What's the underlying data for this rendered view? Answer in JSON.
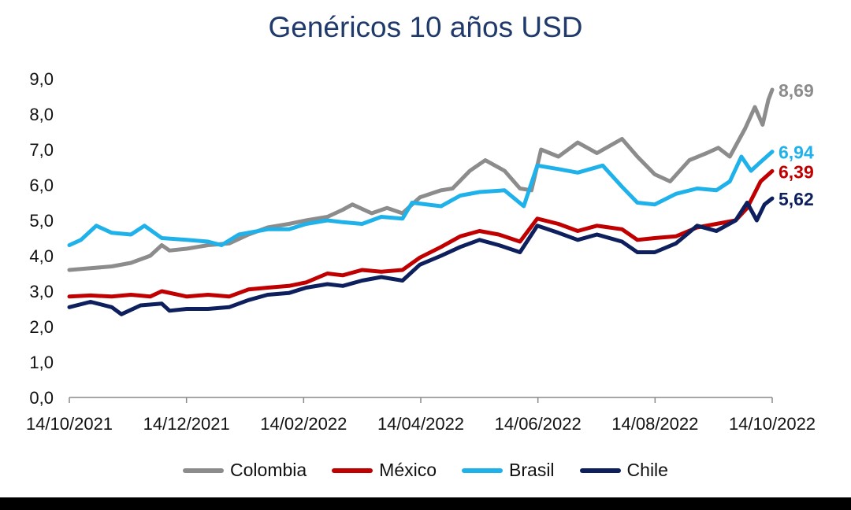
{
  "chart_data": {
    "type": "line",
    "title": "Genéricos 10 años USD",
    "xlabel": "",
    "ylabel": "",
    "ylim": [
      0,
      9
    ],
    "y_ticks": [
      "0,0",
      "1,0",
      "2,0",
      "3,0",
      "4,0",
      "5,0",
      "6,0",
      "7,0",
      "8,0",
      "9,0"
    ],
    "x_range": [
      "2021-10-14",
      "2022-10-14"
    ],
    "x_ticks": [
      "14/10/2021",
      "14/12/2021",
      "14/02/2022",
      "14/04/2022",
      "14/06/2022",
      "14/08/2022",
      "14/10/2022"
    ],
    "grid": false,
    "legend_position": "bottom",
    "series": [
      {
        "name": "Colombia",
        "color": "#8c8c8c",
        "end_label": "8,69",
        "points": [
          [
            "2021-10-14",
            3.6
          ],
          [
            "2021-10-25",
            3.65
          ],
          [
            "2021-11-05",
            3.7
          ],
          [
            "2021-11-15",
            3.8
          ],
          [
            "2021-11-25",
            4.0
          ],
          [
            "2021-12-01",
            4.3
          ],
          [
            "2021-12-05",
            4.15
          ],
          [
            "2021-12-14",
            4.2
          ],
          [
            "2021-12-25",
            4.3
          ],
          [
            "2022-01-05",
            4.35
          ],
          [
            "2022-01-15",
            4.6
          ],
          [
            "2022-01-25",
            4.8
          ],
          [
            "2022-02-05",
            4.9
          ],
          [
            "2022-02-14",
            5.0
          ],
          [
            "2022-02-25",
            5.1
          ],
          [
            "2022-03-05",
            5.3
          ],
          [
            "2022-03-10",
            5.45
          ],
          [
            "2022-03-20",
            5.2
          ],
          [
            "2022-03-28",
            5.35
          ],
          [
            "2022-04-05",
            5.2
          ],
          [
            "2022-04-14",
            5.65
          ],
          [
            "2022-04-25",
            5.85
          ],
          [
            "2022-05-01",
            5.9
          ],
          [
            "2022-05-10",
            6.4
          ],
          [
            "2022-05-18",
            6.7
          ],
          [
            "2022-05-28",
            6.4
          ],
          [
            "2022-06-05",
            5.9
          ],
          [
            "2022-06-11",
            5.85
          ],
          [
            "2022-06-16",
            7.0
          ],
          [
            "2022-06-25",
            6.8
          ],
          [
            "2022-07-05",
            7.2
          ],
          [
            "2022-07-15",
            6.9
          ],
          [
            "2022-07-28",
            7.3
          ],
          [
            "2022-08-05",
            6.8
          ],
          [
            "2022-08-14",
            6.3
          ],
          [
            "2022-08-22",
            6.1
          ],
          [
            "2022-09-01",
            6.7
          ],
          [
            "2022-09-10",
            6.9
          ],
          [
            "2022-09-16",
            7.05
          ],
          [
            "2022-09-22",
            6.8
          ],
          [
            "2022-09-30",
            7.6
          ],
          [
            "2022-10-05",
            8.2
          ],
          [
            "2022-10-09",
            7.7
          ],
          [
            "2022-10-12",
            8.4
          ],
          [
            "2022-10-14",
            8.69
          ]
        ]
      },
      {
        "name": "México",
        "color": "#c00000",
        "end_label": "6,39",
        "points": [
          [
            "2021-10-14",
            2.85
          ],
          [
            "2021-10-25",
            2.88
          ],
          [
            "2021-11-05",
            2.85
          ],
          [
            "2021-11-15",
            2.9
          ],
          [
            "2021-11-25",
            2.85
          ],
          [
            "2021-12-01",
            3.0
          ],
          [
            "2021-12-14",
            2.85
          ],
          [
            "2021-12-25",
            2.9
          ],
          [
            "2022-01-05",
            2.85
          ],
          [
            "2022-01-15",
            3.05
          ],
          [
            "2022-01-25",
            3.1
          ],
          [
            "2022-02-05",
            3.15
          ],
          [
            "2022-02-14",
            3.25
          ],
          [
            "2022-02-25",
            3.5
          ],
          [
            "2022-03-05",
            3.45
          ],
          [
            "2022-03-15",
            3.6
          ],
          [
            "2022-03-25",
            3.55
          ],
          [
            "2022-04-05",
            3.6
          ],
          [
            "2022-04-14",
            3.95
          ],
          [
            "2022-04-25",
            4.25
          ],
          [
            "2022-05-05",
            4.55
          ],
          [
            "2022-05-15",
            4.7
          ],
          [
            "2022-05-25",
            4.6
          ],
          [
            "2022-06-05",
            4.4
          ],
          [
            "2022-06-14",
            5.05
          ],
          [
            "2022-06-25",
            4.9
          ],
          [
            "2022-07-05",
            4.7
          ],
          [
            "2022-07-15",
            4.85
          ],
          [
            "2022-07-28",
            4.75
          ],
          [
            "2022-08-05",
            4.45
          ],
          [
            "2022-08-14",
            4.5
          ],
          [
            "2022-08-25",
            4.55
          ],
          [
            "2022-09-05",
            4.8
          ],
          [
            "2022-09-15",
            4.9
          ],
          [
            "2022-09-25",
            5.0
          ],
          [
            "2022-10-01",
            5.35
          ],
          [
            "2022-10-08",
            6.1
          ],
          [
            "2022-10-14",
            6.39
          ]
        ]
      },
      {
        "name": "Brasil",
        "color": "#1fb2ea",
        "end_label": "6,94",
        "points": [
          [
            "2021-10-14",
            4.3
          ],
          [
            "2021-10-20",
            4.45
          ],
          [
            "2021-10-28",
            4.85
          ],
          [
            "2021-11-05",
            4.65
          ],
          [
            "2021-11-15",
            4.6
          ],
          [
            "2021-11-22",
            4.85
          ],
          [
            "2021-12-01",
            4.5
          ],
          [
            "2021-12-14",
            4.45
          ],
          [
            "2021-12-25",
            4.4
          ],
          [
            "2022-01-01",
            4.3
          ],
          [
            "2022-01-10",
            4.6
          ],
          [
            "2022-01-25",
            4.75
          ],
          [
            "2022-02-05",
            4.75
          ],
          [
            "2022-02-14",
            4.9
          ],
          [
            "2022-02-25",
            5.0
          ],
          [
            "2022-03-05",
            4.95
          ],
          [
            "2022-03-15",
            4.9
          ],
          [
            "2022-03-25",
            5.1
          ],
          [
            "2022-04-05",
            5.05
          ],
          [
            "2022-04-10",
            5.5
          ],
          [
            "2022-04-25",
            5.4
          ],
          [
            "2022-05-05",
            5.7
          ],
          [
            "2022-05-15",
            5.8
          ],
          [
            "2022-05-28",
            5.85
          ],
          [
            "2022-06-07",
            5.4
          ],
          [
            "2022-06-14",
            6.55
          ],
          [
            "2022-06-25",
            6.45
          ],
          [
            "2022-07-05",
            6.35
          ],
          [
            "2022-07-18",
            6.55
          ],
          [
            "2022-07-28",
            5.95
          ],
          [
            "2022-08-05",
            5.5
          ],
          [
            "2022-08-14",
            5.45
          ],
          [
            "2022-08-25",
            5.75
          ],
          [
            "2022-09-05",
            5.9
          ],
          [
            "2022-09-15",
            5.85
          ],
          [
            "2022-09-22",
            6.1
          ],
          [
            "2022-09-28",
            6.8
          ],
          [
            "2022-10-03",
            6.4
          ],
          [
            "2022-10-08",
            6.65
          ],
          [
            "2022-10-14",
            6.94
          ]
        ]
      },
      {
        "name": "Chile",
        "color": "#0d1f5c",
        "end_label": "5,62",
        "points": [
          [
            "2021-10-14",
            2.55
          ],
          [
            "2021-10-25",
            2.7
          ],
          [
            "2021-11-05",
            2.55
          ],
          [
            "2021-11-10",
            2.35
          ],
          [
            "2021-11-20",
            2.6
          ],
          [
            "2021-12-01",
            2.65
          ],
          [
            "2021-12-05",
            2.45
          ],
          [
            "2021-12-14",
            2.5
          ],
          [
            "2021-12-25",
            2.5
          ],
          [
            "2022-01-05",
            2.55
          ],
          [
            "2022-01-15",
            2.75
          ],
          [
            "2022-01-25",
            2.9
          ],
          [
            "2022-02-05",
            2.95
          ],
          [
            "2022-02-14",
            3.1
          ],
          [
            "2022-02-25",
            3.2
          ],
          [
            "2022-03-05",
            3.15
          ],
          [
            "2022-03-15",
            3.3
          ],
          [
            "2022-03-25",
            3.4
          ],
          [
            "2022-04-05",
            3.3
          ],
          [
            "2022-04-14",
            3.75
          ],
          [
            "2022-04-25",
            4.0
          ],
          [
            "2022-05-05",
            4.25
          ],
          [
            "2022-05-15",
            4.45
          ],
          [
            "2022-05-25",
            4.3
          ],
          [
            "2022-06-05",
            4.1
          ],
          [
            "2022-06-14",
            4.85
          ],
          [
            "2022-06-25",
            4.65
          ],
          [
            "2022-07-05",
            4.45
          ],
          [
            "2022-07-15",
            4.6
          ],
          [
            "2022-07-28",
            4.4
          ],
          [
            "2022-08-05",
            4.1
          ],
          [
            "2022-08-14",
            4.1
          ],
          [
            "2022-08-25",
            4.35
          ],
          [
            "2022-09-05",
            4.85
          ],
          [
            "2022-09-15",
            4.7
          ],
          [
            "2022-09-25",
            5.0
          ],
          [
            "2022-10-01",
            5.5
          ],
          [
            "2022-10-06",
            5.0
          ],
          [
            "2022-10-10",
            5.45
          ],
          [
            "2022-10-14",
            5.62
          ]
        ]
      }
    ]
  }
}
